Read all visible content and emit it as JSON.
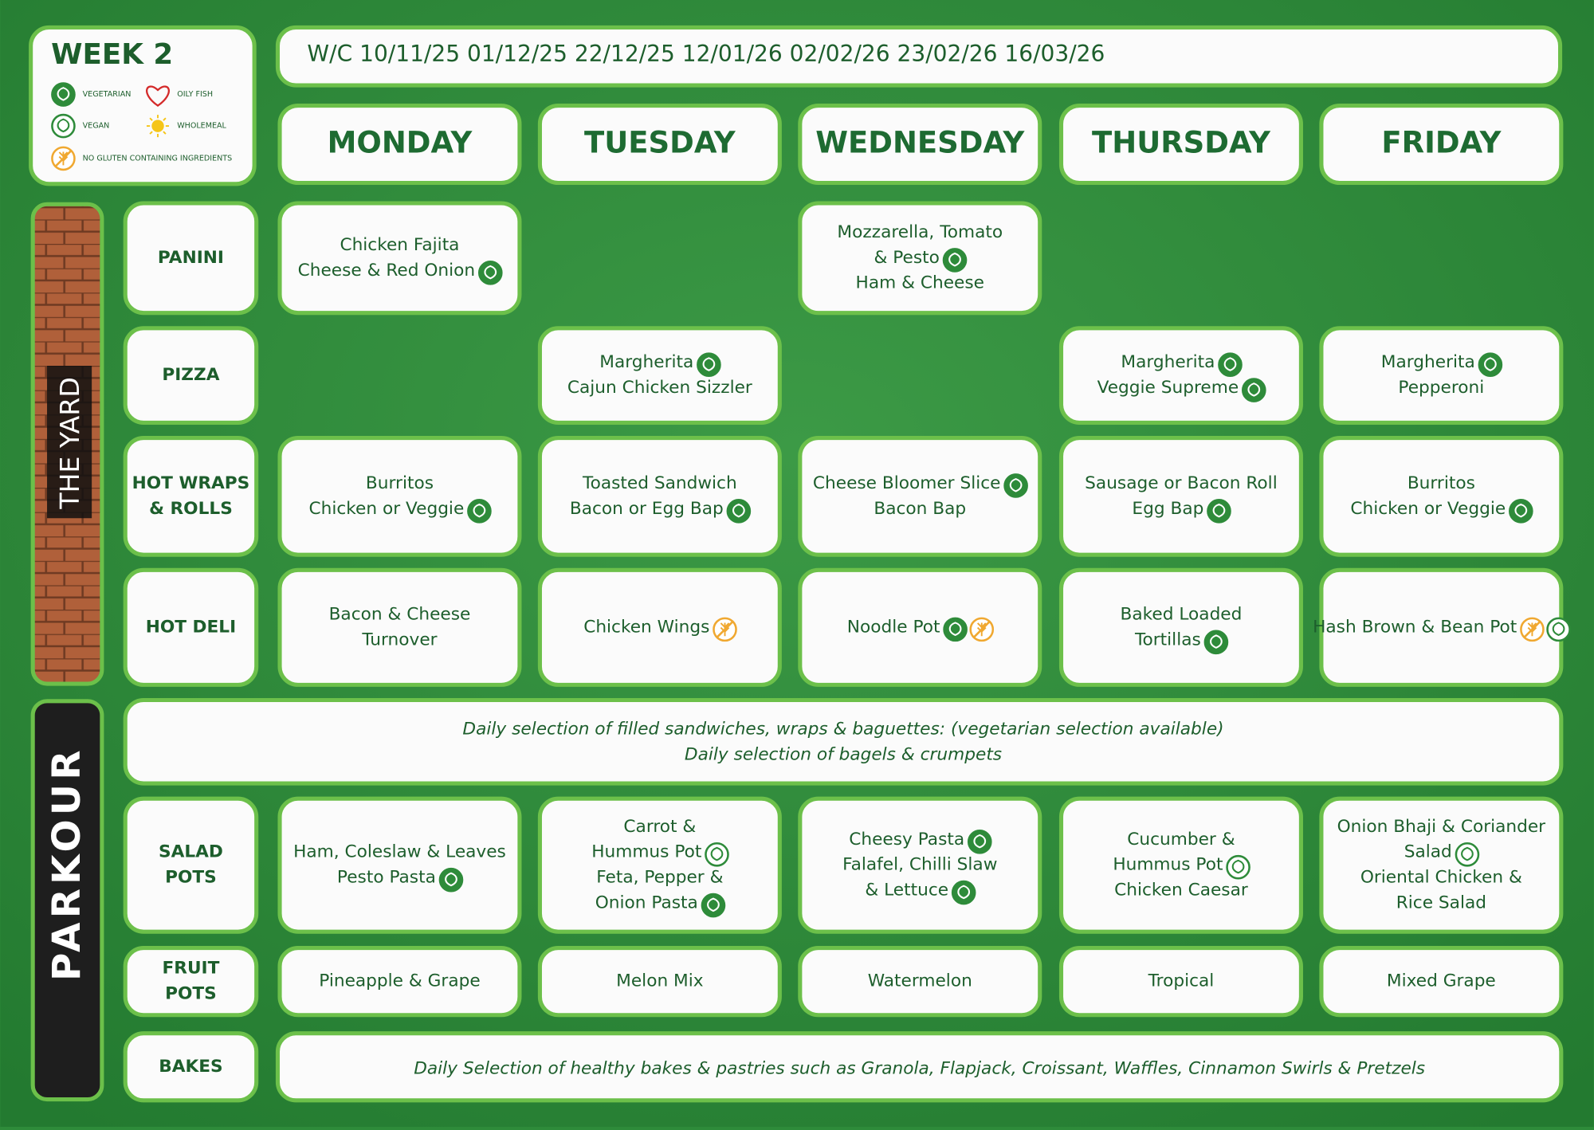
{
  "week": "WEEK 2",
  "legend": [
    "VEGETARIAN",
    "OILY FISH",
    "VEGAN",
    "WHOLEMEAL",
    "NO GLUTEN CONTAINING INGREDIENTS"
  ],
  "dates": "W/C  10/11/25 01/12/25 22/12/25 12/01/26 02/02/26 23/02/26 16/03/26",
  "days": [
    "MONDAY",
    "TUESDAY",
    "WEDNESDAY",
    "THURSDAY",
    "FRIDAY"
  ],
  "side_labels": [
    "THE YARD",
    "PARKOUR"
  ],
  "rows": [
    {
      "label": [
        "PANINI"
      ],
      "cells": [
        {
          "lines": [
            {
              "text": "Chicken Fajita",
              "icons": []
            },
            {
              "text": "Cheese & Red Onion",
              "icons": [
                0
              ]
            }
          ]
        },
        null,
        {
          "lines": [
            {
              "text": "Mozzarella, Tomato",
              "icons": []
            },
            {
              "text": "& Pesto",
              "icons": [
                0
              ]
            },
            {
              "text": "Ham & Cheese",
              "icons": []
            }
          ]
        },
        null,
        null
      ]
    },
    {
      "label": [
        "PIZZA"
      ],
      "cells": [
        null,
        {
          "lines": [
            {
              "text": "Margherita",
              "icons": [
                0
              ]
            },
            {
              "text": "Cajun Chicken Sizzler",
              "icons": []
            }
          ]
        },
        null,
        {
          "lines": [
            {
              "text": "Margherita",
              "icons": [
                0
              ]
            },
            {
              "text": "Veggie Supreme",
              "icons": [
                0
              ]
            }
          ]
        },
        {
          "lines": [
            {
              "text": "Margherita",
              "icons": [
                0
              ]
            },
            {
              "text": "Pepperoni",
              "icons": []
            }
          ]
        }
      ]
    },
    {
      "label": [
        "HOT WRAPS",
        "& ROLLS"
      ],
      "cells": [
        {
          "lines": [
            {
              "text": "Burritos",
              "icons": []
            },
            {
              "text": "Chicken or Veggie",
              "icons": [
                0
              ]
            }
          ]
        },
        {
          "lines": [
            {
              "text": "Toasted Sandwich",
              "icons": []
            },
            {
              "text": "Bacon or Egg Bap",
              "icons": [
                0
              ]
            }
          ]
        },
        {
          "lines": [
            {
              "text": "Cheese Bloomer Slice",
              "icons": [
                0
              ]
            },
            {
              "text": "Bacon Bap",
              "icons": []
            }
          ]
        },
        {
          "lines": [
            {
              "text": "Sausage or Bacon Roll",
              "icons": []
            },
            {
              "text": "Egg Bap",
              "icons": [
                0
              ]
            }
          ]
        },
        {
          "lines": [
            {
              "text": "Burritos",
              "icons": []
            },
            {
              "text": "Chicken or Veggie",
              "icons": [
                0
              ]
            }
          ]
        }
      ]
    },
    {
      "label": [
        "HOT DELI"
      ],
      "cells": [
        {
          "lines": [
            {
              "text": "Bacon & Cheese",
              "icons": []
            },
            {
              "text": "Turnover",
              "icons": []
            }
          ]
        },
        {
          "lines": [
            {
              "text": "Chicken Wings",
              "icons": [
                4
              ]
            }
          ]
        },
        {
          "lines": [
            {
              "text": "Noodle Pot",
              "icons": [
                0,
                4
              ]
            }
          ]
        },
        {
          "lines": [
            {
              "text": "Baked Loaded",
              "icons": []
            },
            {
              "text": "Tortillas",
              "icons": [
                0
              ]
            }
          ]
        },
        {
          "lines": [
            {
              "text": "Hash Brown & Bean Pot",
              "icons": [
                4,
                2
              ]
            }
          ]
        }
      ]
    },
    {
      "label": [
        "SALAD",
        "POTS"
      ],
      "cells": [
        {
          "lines": [
            {
              "text": "Ham, Coleslaw & Leaves",
              "icons": []
            },
            {
              "text": "Pesto Pasta",
              "icons": [
                0
              ]
            }
          ]
        },
        {
          "lines": [
            {
              "text": "Carrot &",
              "icons": []
            },
            {
              "text": "Hummus Pot",
              "icons": [
                2
              ]
            },
            {
              "text": "Feta, Pepper &",
              "icons": []
            },
            {
              "text": "Onion Pasta",
              "icons": [
                0
              ]
            }
          ]
        },
        {
          "lines": [
            {
              "text": "Cheesy Pasta",
              "icons": [
                0
              ]
            },
            {
              "text": "Falafel, Chilli Slaw",
              "icons": []
            },
            {
              "text": "& Lettuce",
              "icons": [
                0
              ]
            }
          ]
        },
        {
          "lines": [
            {
              "text": "Cucumber &",
              "icons": []
            },
            {
              "text": "Hummus Pot",
              "icons": [
                2
              ]
            },
            {
              "text": "Chicken Caesar",
              "icons": []
            }
          ]
        },
        {
          "lines": [
            {
              "text": "Onion Bhaji & Coriander",
              "icons": []
            },
            {
              "text": "Salad",
              "icons": [
                2
              ]
            },
            {
              "text": "Oriental Chicken &",
              "icons": []
            },
            {
              "text": "Rice Salad",
              "icons": []
            }
          ]
        }
      ]
    },
    {
      "label": [
        "FRUIT",
        "POTS"
      ],
      "cells": [
        {
          "lines": [
            {
              "text": "Pineapple & Grape",
              "icons": []
            }
          ]
        },
        {
          "lines": [
            {
              "text": "Melon Mix",
              "icons": []
            }
          ]
        },
        {
          "lines": [
            {
              "text": "Watermelon",
              "icons": []
            }
          ]
        },
        {
          "lines": [
            {
              "text": "Tropical",
              "icons": []
            }
          ]
        },
        {
          "lines": [
            {
              "text": "Mixed Grape",
              "icons": []
            }
          ]
        }
      ]
    }
  ],
  "daily_note": [
    "Daily selection of filled sandwiches, wraps & baguettes: (vegetarian selection available)",
    "Daily selection of bagels & crumpets"
  ],
  "bakes": {
    "label": "BAKES",
    "note": "Daily Selection of healthy bakes & pastries such as Granola, Flapjack, Croissant, Waffles, Cinnamon Swirls & Pretzels"
  }
}
